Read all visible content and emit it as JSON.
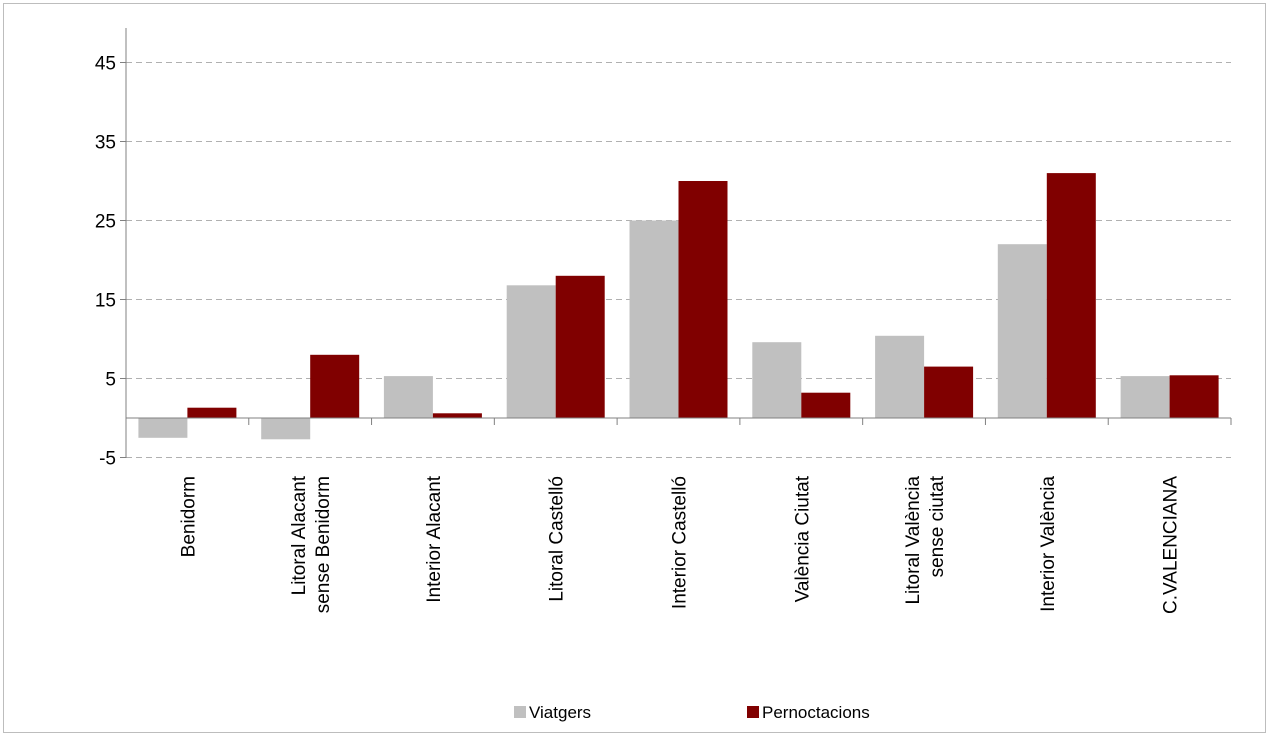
{
  "chart_data": {
    "type": "bar",
    "categories": [
      [
        "Benidorm"
      ],
      [
        "Litoral Alacant",
        "sense Benidorm"
      ],
      [
        "Interior Alacant"
      ],
      [
        "Litoral Castelló"
      ],
      [
        "Interior Castelló"
      ],
      [
        "València Ciutat"
      ],
      [
        "Litoral València",
        "sense ciutat"
      ],
      [
        "Interior València"
      ],
      [
        "C.VALENCIANA"
      ]
    ],
    "series": [
      {
        "name": "Viatgers",
        "color": "#c0c0c0",
        "values": [
          -2.5,
          -2.7,
          5.3,
          16.8,
          25.0,
          9.6,
          10.4,
          22.0,
          5.3
        ]
      },
      {
        "name": "Pernoctacions",
        "color": "#800000",
        "values": [
          1.3,
          8.0,
          0.6,
          18.0,
          30.0,
          3.2,
          6.5,
          31.0,
          5.4
        ]
      }
    ],
    "y_ticks": [
      "-5",
      "5",
      "15",
      "25",
      "35",
      "45"
    ],
    "ylim": [
      -5,
      50
    ],
    "grid": true,
    "legend_position": "bottom"
  }
}
